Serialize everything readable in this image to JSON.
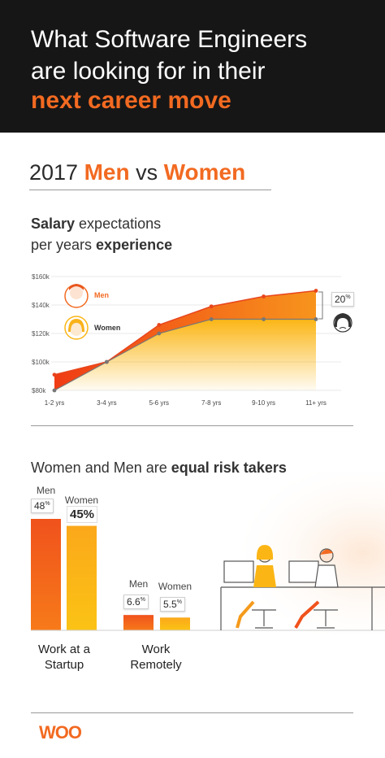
{
  "header": {
    "line1": "What Software Engineers",
    "line2": "are looking for in their",
    "line3": "next career move"
  },
  "subtitle": {
    "year": "2017",
    "men": "Men",
    "vs": "vs",
    "women": "Women"
  },
  "salary_section": {
    "title_bold1": "Salary",
    "title_rest1": " expectations",
    "title_rest2": "per years ",
    "title_bold2": "experience"
  },
  "risk_section": {
    "title_rest": "Women and Men are ",
    "title_bold": "equal risk takers"
  },
  "logo": "WOO",
  "colors": {
    "accent": "#f26a21",
    "men": "#f0521c",
    "women": "#fbb615",
    "header_bg": "#161616"
  },
  "chart_data": [
    {
      "type": "area",
      "ytick_labels": [
        "$160k",
        "$140k",
        "$120k",
        "$100k",
        "$80k"
      ],
      "yticks": [
        160,
        140,
        120,
        100,
        80
      ],
      "ylim": [
        80,
        160
      ],
      "categories": [
        "1-2 yrs",
        "3-4 yrs",
        "5-6 yrs",
        "7-8 yrs",
        "9-10 yrs",
        "11+ yrs"
      ],
      "series": [
        {
          "name": "Men",
          "values": [
            91,
            100,
            126,
            139,
            146,
            150
          ]
        },
        {
          "name": "Women",
          "values": [
            80,
            100,
            120,
            130,
            130,
            130
          ]
        }
      ],
      "annotation": {
        "value": "20",
        "unit": "%"
      }
    },
    {
      "type": "bar",
      "categories": [
        [
          "Work at a",
          "Startup"
        ],
        [
          "Work",
          "Remotely"
        ]
      ],
      "series": [
        {
          "name": "Men",
          "values": [
            48,
            6.6
          ],
          "labels": [
            "48",
            "6.6"
          ]
        },
        {
          "name": "Women",
          "values": [
            45,
            5.5
          ],
          "labels": [
            "45%",
            "5.5"
          ]
        }
      ],
      "unit": "%"
    }
  ]
}
